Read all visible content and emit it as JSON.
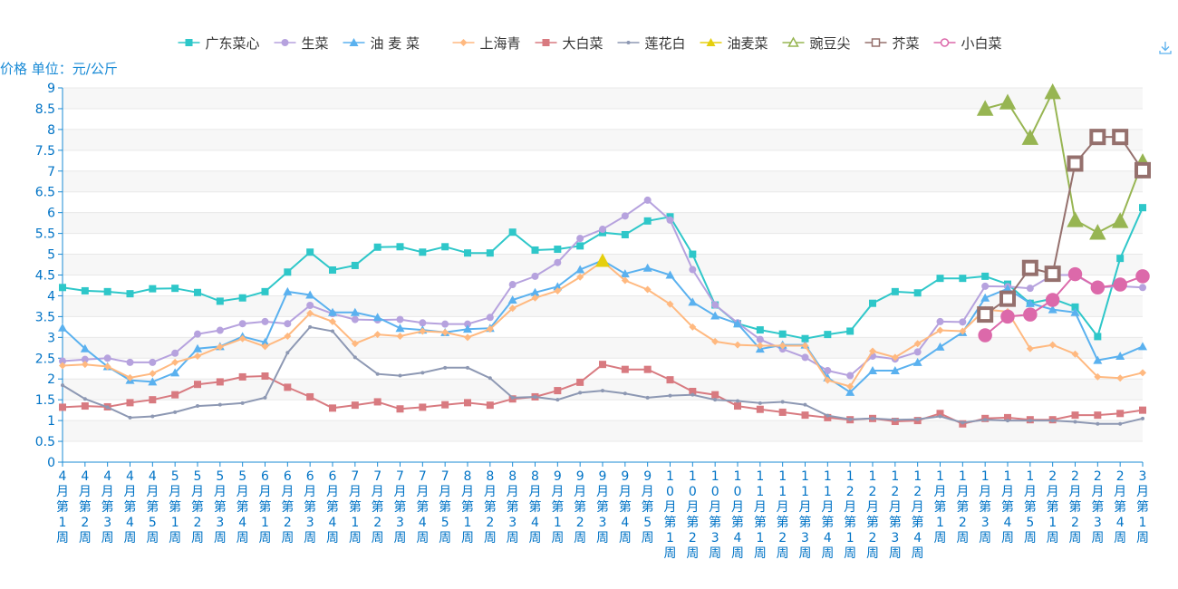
{
  "chart_data": {
    "type": "line",
    "title": "",
    "ylabel": "价格 单位：元/公斤",
    "xlabel": "",
    "ylim": [
      0,
      9
    ],
    "yticks": [
      "0",
      "0.5",
      "1",
      "1.5",
      "2",
      "2.5",
      "3",
      "3.5",
      "4",
      "4.5",
      "5",
      "5.5",
      "6",
      "6.5",
      "7",
      "7.5",
      "8",
      "8.5",
      "9"
    ],
    "grid": "horizontal",
    "legend_position": "top-center",
    "categories": [
      "4月第1周",
      "4月第2周",
      "4月第3周",
      "4月第4周",
      "4月第5周",
      "5月第1周",
      "5月第2周",
      "5月第3周",
      "5月第4周",
      "6月第1周",
      "6月第2周",
      "6月第3周",
      "6月第4周",
      "7月第1周",
      "7月第2周",
      "7月第3周",
      "7月第4周",
      "7月第5周",
      "8月第1周",
      "8月第2周",
      "8月第3周",
      "8月第4周",
      "9月第1周",
      "9月第2周",
      "9月第3周",
      "9月第4周",
      "9月第5周",
      "10月第1周",
      "10月第2周",
      "10月第3周",
      "10月第4周",
      "11月第1周",
      "11月第2周",
      "11月第3周",
      "11月第4周",
      "12月第1周",
      "12月第2周",
      "12月第3周",
      "12月第4周",
      "1月第1周",
      "1月第2周",
      "1月第3周",
      "1月第4周",
      "1月第5周",
      "2月第1周",
      "2月第2周",
      "2月第3周",
      "2月第4周",
      "3月第1周"
    ],
    "series": [
      {
        "name": "广东菜心",
        "color": "#2ec7c9",
        "marker": "square",
        "values": [
          4.2,
          4.12,
          4.1,
          4.05,
          4.17,
          4.18,
          4.08,
          3.87,
          3.95,
          4.1,
          4.57,
          5.05,
          4.62,
          4.73,
          5.17,
          5.18,
          5.05,
          5.18,
          5.03,
          5.03,
          5.53,
          5.1,
          5.12,
          5.2,
          5.52,
          5.47,
          5.8,
          5.9,
          5,
          3.78,
          3.33,
          3.18,
          3.08,
          2.97,
          3.07,
          3.15,
          3.82,
          4.1,
          4.07,
          4.42,
          4.42,
          4.47,
          4.28,
          3.82,
          3.93,
          3.73,
          3.02,
          4.9,
          6.12
        ]
      },
      {
        "name": "生菜",
        "color": "#b6a2de",
        "marker": "circle",
        "values": [
          2.43,
          2.47,
          2.5,
          2.4,
          2.4,
          2.62,
          3.08,
          3.17,
          3.33,
          3.38,
          3.33,
          3.77,
          3.57,
          3.43,
          3.42,
          3.43,
          3.35,
          3.32,
          3.32,
          3.48,
          4.27,
          4.47,
          4.8,
          5.38,
          5.6,
          5.92,
          6.3,
          5.82,
          4.63,
          3.78,
          3.35,
          2.95,
          2.72,
          2.52,
          2.2,
          2.08,
          2.55,
          2.48,
          2.65,
          3.38,
          3.37,
          4.23,
          4.22,
          4.18,
          4.5,
          4.5,
          4.2,
          4.23,
          4.2
        ]
      },
      {
        "name": "油 麦 菜",
        "color": "#5ab1ef",
        "marker": "triangle",
        "values": [
          3.23,
          2.73,
          2.3,
          1.97,
          1.93,
          2.15,
          2.73,
          2.78,
          3.02,
          2.88,
          4.1,
          4.02,
          3.6,
          3.6,
          3.48,
          3.22,
          3.18,
          3.12,
          3.2,
          3.22,
          3.9,
          4.08,
          4.22,
          4.63,
          4.85,
          4.53,
          4.67,
          4.5,
          3.85,
          3.52,
          3.33,
          2.72,
          2.82,
          2.82,
          2.03,
          1.68,
          2.2,
          2.2,
          2.4,
          2.77,
          3.12,
          3.95,
          4.17,
          3.82,
          3.67,
          3.6,
          2.45,
          2.55,
          2.78
        ]
      },
      {
        "name": "上海青",
        "color": "#ffb980",
        "marker": "diamond",
        "values": [
          2.32,
          2.35,
          2.3,
          2.03,
          2.13,
          2.4,
          2.55,
          2.77,
          2.97,
          2.78,
          3.03,
          3.58,
          3.38,
          2.85,
          3.07,
          3.03,
          3.15,
          3.12,
          3.0,
          3.2,
          3.7,
          3.95,
          4.12,
          4.45,
          4.83,
          4.37,
          4.15,
          3.8,
          3.25,
          2.9,
          2.82,
          2.8,
          2.8,
          2.8,
          1.97,
          1.82,
          2.67,
          2.52,
          2.85,
          3.17,
          3.15,
          3.67,
          3.62,
          2.73,
          2.82,
          2.6,
          2.05,
          2.02,
          2.15
        ]
      },
      {
        "name": "大白菜",
        "color": "#d87a80",
        "marker": "square",
        "values": [
          1.32,
          1.35,
          1.33,
          1.43,
          1.5,
          1.62,
          1.87,
          1.93,
          2.05,
          2.07,
          1.8,
          1.57,
          1.3,
          1.37,
          1.45,
          1.28,
          1.32,
          1.38,
          1.43,
          1.37,
          1.52,
          1.57,
          1.72,
          1.92,
          2.35,
          2.23,
          2.23,
          1.98,
          1.7,
          1.62,
          1.35,
          1.27,
          1.2,
          1.13,
          1.07,
          1.02,
          1.05,
          0.98,
          1.0,
          1.17,
          0.92,
          1.05,
          1.07,
          1.02,
          1.02,
          1.13,
          1.13,
          1.17,
          1.25
        ]
      },
      {
        "name": "莲花白",
        "color": "#8d98b3",
        "marker": "pin",
        "values": [
          1.85,
          1.52,
          1.32,
          1.07,
          1.1,
          1.2,
          1.35,
          1.38,
          1.42,
          1.55,
          2.63,
          3.25,
          3.15,
          2.52,
          2.12,
          2.08,
          2.15,
          2.27,
          2.27,
          2.02,
          1.55,
          1.57,
          1.5,
          1.67,
          1.72,
          1.65,
          1.55,
          1.6,
          1.62,
          1.5,
          1.47,
          1.42,
          1.45,
          1.38,
          1.12,
          1.03,
          1.05,
          1.02,
          1.03,
          1.1,
          0.95,
          1.02,
          1.0,
          1.0,
          1.0,
          0.97,
          0.92,
          0.92,
          1.05
        ]
      },
      {
        "name": "油麦菜",
        "color": "#e5cf0d",
        "marker": "triangle",
        "values": [
          null,
          null,
          null,
          null,
          null,
          null,
          null,
          null,
          null,
          null,
          null,
          null,
          null,
          null,
          null,
          null,
          null,
          null,
          null,
          null,
          null,
          null,
          null,
          null,
          4.85,
          null,
          null,
          null,
          null,
          null,
          null,
          null,
          null,
          null,
          null,
          null,
          null,
          null,
          null,
          null,
          null,
          null,
          null,
          null,
          null,
          null,
          null,
          null,
          null
        ]
      },
      {
        "name": "豌豆尖",
        "color": "#97b552",
        "marker": "triangle-open",
        "values": [
          null,
          null,
          null,
          null,
          null,
          null,
          null,
          null,
          null,
          null,
          null,
          null,
          null,
          null,
          null,
          null,
          null,
          null,
          null,
          null,
          null,
          null,
          null,
          null,
          null,
          null,
          null,
          null,
          null,
          null,
          null,
          null,
          null,
          null,
          null,
          null,
          null,
          null,
          null,
          null,
          null,
          8.5,
          8.65,
          7.8,
          8.9,
          5.82,
          5.52,
          5.8,
          7.22
        ]
      },
      {
        "name": "芥菜",
        "color": "#95706d",
        "marker": "square-open",
        "values": [
          null,
          null,
          null,
          null,
          null,
          null,
          null,
          null,
          null,
          null,
          null,
          null,
          null,
          null,
          null,
          null,
          null,
          null,
          null,
          null,
          null,
          null,
          null,
          null,
          null,
          null,
          null,
          null,
          null,
          null,
          null,
          null,
          null,
          null,
          null,
          null,
          null,
          null,
          null,
          null,
          null,
          3.55,
          3.93,
          4.67,
          4.53,
          7.18,
          7.82,
          7.82,
          7.02
        ]
      },
      {
        "name": "小白菜",
        "color": "#dc69aa",
        "marker": "circle-open",
        "values": [
          null,
          null,
          null,
          null,
          null,
          null,
          null,
          null,
          null,
          null,
          null,
          null,
          null,
          null,
          null,
          null,
          null,
          null,
          null,
          null,
          null,
          null,
          null,
          null,
          null,
          null,
          null,
          null,
          null,
          null,
          null,
          null,
          null,
          null,
          null,
          null,
          null,
          null,
          null,
          null,
          null,
          3.05,
          3.5,
          3.55,
          3.9,
          4.52,
          4.2,
          4.27,
          4.47
        ]
      }
    ]
  },
  "toolbar": {
    "download_icon": "download-icon"
  },
  "colors": {
    "axis": "#1a8bd6",
    "text_axis": "#0073c6"
  }
}
